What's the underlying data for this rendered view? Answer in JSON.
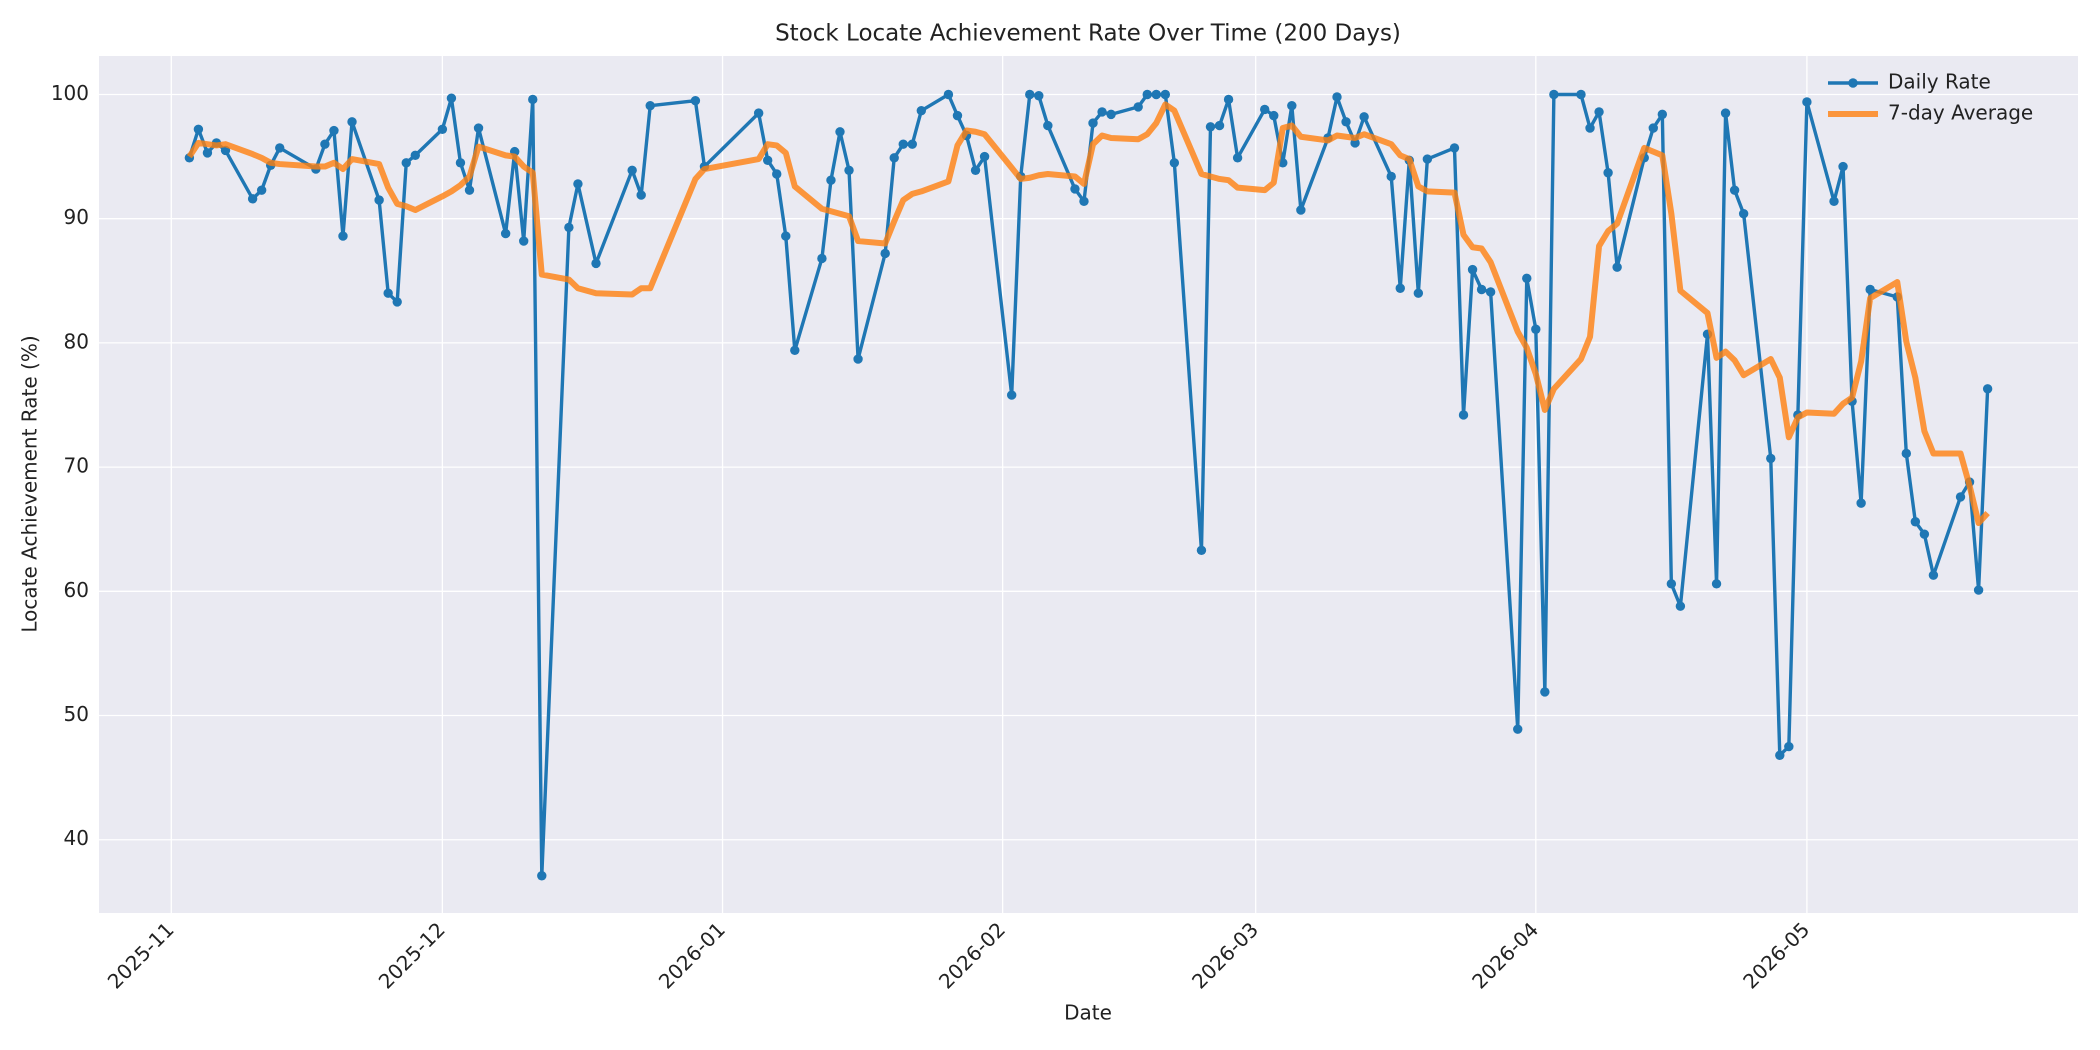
{
  "chart_data": {
    "type": "line",
    "title": "Stock Locate Achievement Rate Over Time (200 Days)",
    "x_label": "Date",
    "y_label": "Locate Achievement Rate (%)",
    "x": [
      "2025-11-03",
      "2025-11-04",
      "2025-11-05",
      "2025-11-06",
      "2025-11-07",
      "2025-11-10",
      "2025-11-11",
      "2025-11-12",
      "2025-11-13",
      "2025-11-17",
      "2025-11-18",
      "2025-11-19",
      "2025-11-20",
      "2025-11-21",
      "2025-11-24",
      "2025-11-25",
      "2025-11-26",
      "2025-11-27",
      "2025-11-28",
      "2025-12-01",
      "2025-12-02",
      "2025-12-03",
      "2025-12-04",
      "2025-12-05",
      "2025-12-08",
      "2025-12-09",
      "2025-12-10",
      "2025-12-11",
      "2025-12-12",
      "2025-12-15",
      "2025-12-16",
      "2025-12-18",
      "2025-12-22",
      "2025-12-23",
      "2025-12-24",
      "2025-12-29",
      "2025-12-30",
      "2026-01-05",
      "2026-01-06",
      "2026-01-07",
      "2026-01-08",
      "2026-01-09",
      "2026-01-12",
      "2026-01-13",
      "2026-01-14",
      "2026-01-15",
      "2026-01-16",
      "2026-01-19",
      "2026-01-20",
      "2026-01-21",
      "2026-01-22",
      "2026-01-23",
      "2026-01-26",
      "2026-01-27",
      "2026-01-28",
      "2026-01-29",
      "2026-01-30",
      "2026-02-02",
      "2026-02-03",
      "2026-02-04",
      "2026-02-05",
      "2026-02-06",
      "2026-02-09",
      "2026-02-10",
      "2026-02-11",
      "2026-02-12",
      "2026-02-13",
      "2026-02-16",
      "2026-02-17",
      "2026-02-18",
      "2026-02-19",
      "2026-02-20",
      "2026-02-23",
      "2026-02-24",
      "2026-02-25",
      "2026-02-26",
      "2026-02-27",
      "2026-03-02",
      "2026-03-03",
      "2026-03-04",
      "2026-03-05",
      "2026-03-06",
      "2026-03-09",
      "2026-03-10",
      "2026-03-11",
      "2026-03-12",
      "2026-03-13",
      "2026-03-16",
      "2026-03-17",
      "2026-03-18",
      "2026-03-19",
      "2026-03-20",
      "2026-03-23",
      "2026-03-24",
      "2026-03-25",
      "2026-03-26",
      "2026-03-27",
      "2026-03-30",
      "2026-03-31",
      "2026-04-01",
      "2026-04-02",
      "2026-04-03",
      "2026-04-06",
      "2026-04-07",
      "2026-04-08",
      "2026-04-09",
      "2026-04-10",
      "2026-04-13",
      "2026-04-14",
      "2026-04-15",
      "2026-04-16",
      "2026-04-17",
      "2026-04-20",
      "2026-04-21",
      "2026-04-22",
      "2026-04-23",
      "2026-04-24",
      "2026-04-27",
      "2026-04-28",
      "2026-04-29",
      "2026-04-30",
      "2026-05-01",
      "2026-05-04",
      "2026-05-05",
      "2026-05-06",
      "2026-05-07",
      "2026-05-08",
      "2026-05-11",
      "2026-05-12",
      "2026-05-13",
      "2026-05-14",
      "2026-05-15",
      "2026-05-18",
      "2026-05-19",
      "2026-05-20",
      "2026-05-21"
    ],
    "series": [
      {
        "name": "Daily Rate",
        "color": "#1f77b4",
        "marker": true,
        "values": [
          94.9,
          97.2,
          95.3,
          96.1,
          95.5,
          91.6,
          92.3,
          94.3,
          95.7,
          94.0,
          96.0,
          97.1,
          88.6,
          97.8,
          91.5,
          84.0,
          83.3,
          94.5,
          95.1,
          97.2,
          99.7,
          94.5,
          92.3,
          97.3,
          88.8,
          95.4,
          88.2,
          99.6,
          37.1,
          89.3,
          92.8,
          86.4,
          93.9,
          91.9,
          99.1,
          99.5,
          94.2,
          98.5,
          94.7,
          93.6,
          88.6,
          79.4,
          86.8,
          93.1,
          97.0,
          93.9,
          78.7,
          87.2,
          94.9,
          96.0,
          96.0,
          98.7,
          100.0,
          98.3,
          96.7,
          93.9,
          95.0,
          75.8,
          93.4,
          100.0,
          99.9,
          97.5,
          92.4,
          91.4,
          97.7,
          98.6,
          98.4,
          99.0,
          100.0,
          100.0,
          100.0,
          94.5,
          63.3,
          97.4,
          97.5,
          99.6,
          94.9,
          98.8,
          98.3,
          94.5,
          99.1,
          90.7,
          96.5,
          99.8,
          97.8,
          96.1,
          98.2,
          93.4,
          84.4,
          94.7,
          84.0,
          94.8,
          95.7,
          74.2,
          85.9,
          84.3,
          84.1,
          48.9,
          85.2,
          81.1,
          51.9,
          100.0,
          100.0,
          97.3,
          98.6,
          93.7,
          86.1,
          94.9,
          97.3,
          98.4,
          60.6,
          58.8,
          80.7,
          60.6,
          98.5,
          92.3,
          90.4,
          70.7,
          46.8,
          47.5,
          74.2,
          99.4,
          91.4,
          94.2,
          75.3,
          67.1,
          84.3,
          83.7,
          71.1,
          65.6,
          64.6,
          61.3,
          67.6,
          68.8,
          60.1,
          76.3
        ]
      },
      {
        "name": "7-day Average",
        "color": "#ff7f0e",
        "marker": false,
        "values": [
          95.0,
          96.1,
          96.0,
          95.9,
          96.0,
          95.2,
          94.9,
          94.5,
          94.4,
          94.2,
          94.2,
          94.5,
          94.0,
          94.8,
          94.4,
          92.5,
          91.2,
          91.0,
          90.7,
          91.8,
          92.2,
          92.7,
          93.4,
          95.8,
          95.1,
          95.0,
          94.2,
          93.7,
          85.5,
          85.1,
          84.4,
          84.0,
          83.9,
          84.4,
          84.4,
          93.2,
          94.0,
          94.8,
          96.0,
          95.9,
          95.3,
          92.6,
          90.8,
          90.6,
          90.4,
          90.2,
          88.2,
          88.0,
          89.8,
          91.5,
          92.0,
          92.2,
          93.0,
          95.9,
          97.1,
          97.0,
          96.8,
          94.1,
          93.2,
          93.3,
          93.5,
          93.6,
          93.4,
          92.8,
          96.0,
          96.7,
          96.5,
          96.4,
          96.8,
          97.7,
          99.2,
          98.7,
          93.6,
          93.4,
          93.2,
          93.1,
          92.5,
          92.3,
          92.9,
          97.3,
          97.5,
          96.6,
          96.3,
          96.7,
          96.6,
          96.5,
          96.8,
          96.0,
          95.1,
          94.8,
          92.6,
          92.2,
          92.1,
          88.7,
          87.7,
          87.6,
          86.5,
          80.9,
          79.6,
          77.5,
          74.6,
          76.3,
          78.7,
          80.5,
          87.8,
          89.0,
          89.6,
          95.7,
          95.4,
          95.1,
          90.4,
          84.2,
          82.4,
          78.8,
          79.3,
          78.6,
          77.4,
          78.7,
          77.2,
          72.4,
          74.0,
          74.4,
          74.3,
          75.1,
          75.6,
          78.5,
          83.6,
          84.9,
          80.1,
          77.2,
          72.9,
          71.1,
          71.1,
          68.5,
          65.5,
          66.3
        ]
      }
    ],
    "xlim": [
      "2025-10-24",
      "2026-05-31"
    ],
    "xticks": [
      "2025-11",
      "2025-12",
      "2026-01",
      "2026-02",
      "2026-03",
      "2026-04",
      "2026-05"
    ],
    "ylim": [
      34.1,
      103.1
    ],
    "yticks": [
      40,
      50,
      60,
      70,
      80,
      90,
      100
    ],
    "grid": true,
    "legend": "upper right"
  }
}
